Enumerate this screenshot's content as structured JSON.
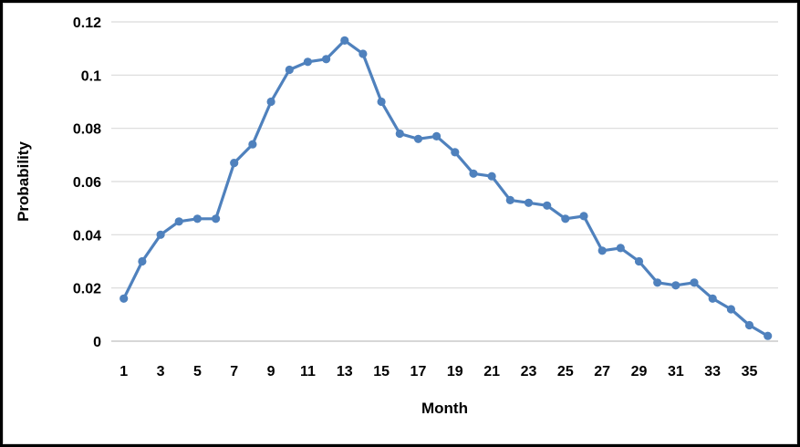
{
  "chart_data": {
    "type": "line",
    "title": "",
    "xlabel": "Month",
    "ylabel": "Probability",
    "series": [
      {
        "name": "Probability",
        "x": [
          1,
          2,
          3,
          4,
          5,
          6,
          7,
          8,
          9,
          10,
          11,
          12,
          13,
          14,
          15,
          16,
          17,
          18,
          19,
          20,
          21,
          22,
          23,
          24,
          25,
          26,
          27,
          28,
          29,
          30,
          31,
          32,
          33,
          34,
          35,
          36
        ],
        "values": [
          0.016,
          0.03,
          0.04,
          0.045,
          0.046,
          0.046,
          0.067,
          0.074,
          0.09,
          0.102,
          0.105,
          0.106,
          0.113,
          0.108,
          0.09,
          0.078,
          0.076,
          0.077,
          0.071,
          0.063,
          0.062,
          0.053,
          0.052,
          0.051,
          0.046,
          0.047,
          0.034,
          0.035,
          0.03,
          0.022,
          0.021,
          0.022,
          0.016,
          0.012,
          0.006,
          0.002
        ]
      }
    ],
    "x_ticks": [
      1,
      3,
      5,
      7,
      9,
      11,
      13,
      15,
      17,
      19,
      21,
      23,
      25,
      27,
      29,
      31,
      33,
      35
    ],
    "x_tick_labels": [
      "1",
      "3",
      "5",
      "7",
      "9",
      "11",
      "13",
      "15",
      "17",
      "19",
      "21",
      "23",
      "25",
      "27",
      "29",
      "31",
      "33",
      "35"
    ],
    "y_ticks": [
      0,
      0.02,
      0.04,
      0.06,
      0.08,
      0.1,
      0.12
    ],
    "y_tick_labels": [
      "0",
      "0.02",
      "0.04",
      "0.06",
      "0.08",
      "0.1",
      "0.12"
    ],
    "xlim": [
      0.32,
      36.56
    ],
    "ylim": [
      0,
      0.12
    ],
    "grid": true,
    "legend": false,
    "line_color": "#4F81BD",
    "marker": "circle",
    "gridline_color": "#D9D9D9",
    "zero_line_color": "#BFBFBF",
    "text_color": "#000000"
  }
}
